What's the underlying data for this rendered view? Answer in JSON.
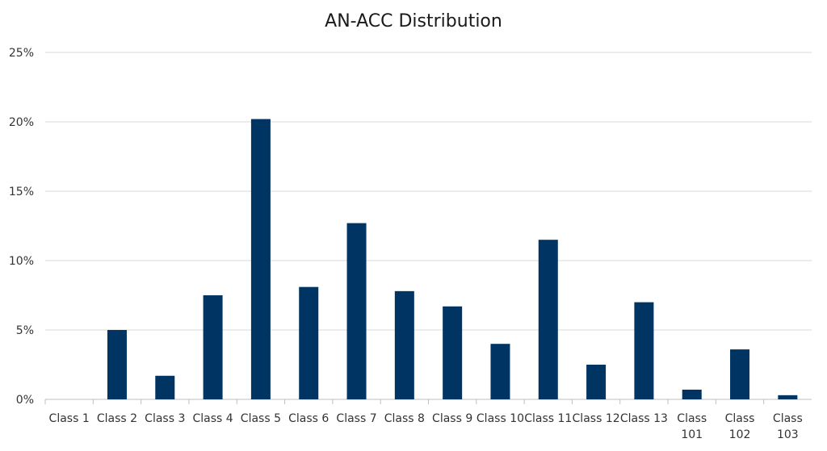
{
  "chart_data": {
    "type": "bar",
    "title": "AN-ACC Distribution",
    "xlabel": "",
    "ylabel": "",
    "categories": [
      "Class 1",
      "Class 2",
      "Class 3",
      "Class 4",
      "Class 5",
      "Class 6",
      "Class 7",
      "Class 8",
      "Class 9",
      "Class 10",
      "Class 11",
      "Class 12",
      "Class 13",
      "Class 101",
      "Class 102",
      "Class 103"
    ],
    "values": [
      0,
      5.0,
      1.7,
      7.5,
      20.2,
      8.1,
      12.7,
      7.8,
      6.7,
      4.0,
      11.5,
      2.5,
      7.0,
      0.7,
      3.6,
      0.3
    ],
    "ylim": [
      0,
      25
    ],
    "yticks": [
      0,
      5,
      10,
      15,
      20,
      25
    ],
    "ytick_labels": [
      "0%",
      "5%",
      "10%",
      "15%",
      "20%",
      "25%"
    ],
    "grid": true,
    "legend": "none",
    "bar_color": "#003462"
  }
}
